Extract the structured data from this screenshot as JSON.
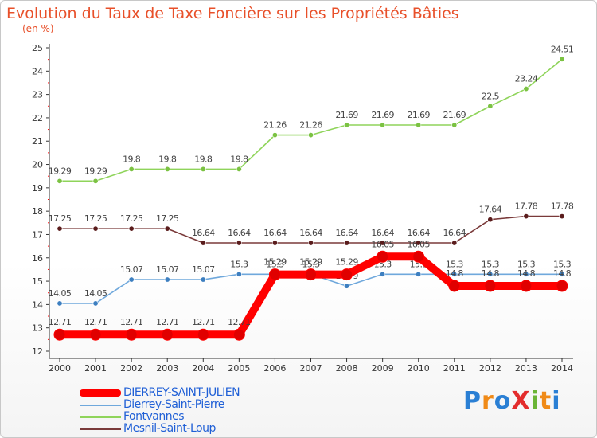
{
  "title": "Evolution du Taux de Taxe Foncière sur les Propriétés Bâties",
  "unit": "(en %)",
  "brand": "ProXiti",
  "brand_colors": [
    "#2a7fd4",
    "#f08a17",
    "#2a7fd4",
    "#e32c2c",
    "#6ab536",
    "#f08a17",
    "#2a7fd4"
  ],
  "chart_data": {
    "type": "line",
    "x": [
      2000,
      2001,
      2002,
      2003,
      2004,
      2005,
      2006,
      2007,
      2008,
      2009,
      2010,
      2011,
      2012,
      2013,
      2014
    ],
    "ylim": [
      12,
      25
    ],
    "yticks": [
      12,
      13,
      14,
      15,
      16,
      17,
      18,
      19,
      20,
      21,
      22,
      23,
      24,
      25
    ],
    "grid": false,
    "legend_position": "bottom-left",
    "series": [
      {
        "name": "Fontvannes",
        "color": "#8fd45a",
        "point_color": "#7bc242",
        "values": [
          19.29,
          19.29,
          19.8,
          19.8,
          19.8,
          19.8,
          21.26,
          21.26,
          21.69,
          21.69,
          21.69,
          21.69,
          22.5,
          23.24,
          24.51
        ],
        "labels": [
          "19.29",
          "19.29",
          "19.8",
          "19.8",
          "19.8",
          "19.8",
          "21.26",
          "21.26",
          "21.69",
          "21.69",
          "21.69",
          "21.69",
          "22.5",
          "23.24",
          "24.51"
        ]
      },
      {
        "name": "Mesnil-Saint-Loup",
        "color": "#7a3a3a",
        "point_color": "#5a1c1c",
        "values": [
          17.25,
          17.25,
          17.25,
          17.25,
          16.64,
          16.64,
          16.64,
          16.64,
          16.64,
          16.64,
          16.64,
          16.64,
          17.64,
          17.78,
          17.78
        ],
        "labels": [
          "17.25",
          "17.25",
          "17.25",
          "17.25",
          "16.64",
          "16.64",
          "16.64",
          "16.64",
          "16.64",
          "16.64",
          "16.64",
          "16.64",
          "17.64",
          "17.78",
          "17.78"
        ]
      },
      {
        "name": "Dierrey-Saint-Pierre",
        "color": "#6fa8dc",
        "point_color": "#3d7fc0",
        "values": [
          14.05,
          14.05,
          15.07,
          15.07,
          15.07,
          15.3,
          15.3,
          15.3,
          14.79,
          15.3,
          15.3,
          15.3,
          15.3,
          15.3,
          15.3
        ],
        "labels": [
          "14.05",
          "14.05",
          "15.07",
          "15.07",
          "15.07",
          "15.3",
          "15.3",
          "15.3",
          "14.79",
          "15.3",
          "15.3",
          "15.3",
          "15.3",
          "15.3",
          "15.3"
        ]
      },
      {
        "name": "DIERREY-SAINT-JULIEN",
        "color": "#ff0000",
        "point_color": "#e00000",
        "values": [
          12.71,
          12.71,
          12.71,
          12.71,
          12.71,
          12.71,
          15.29,
          15.29,
          15.29,
          16.05,
          16.05,
          14.8,
          14.8,
          14.8,
          14.8
        ],
        "labels": [
          "12.71",
          "12.71",
          "12.71",
          "12.71",
          "12.71",
          "12.71",
          "15.29",
          "15.29",
          "15.29",
          "16.05",
          "16.05",
          "14.8",
          "14.8",
          "14.8",
          "14.8"
        ]
      }
    ]
  },
  "legend": [
    {
      "label": "DIERREY-SAINT-JULIEN",
      "color": "#ff0000"
    },
    {
      "label": "Dierrey-Saint-Pierre",
      "color": "#6fa8dc"
    },
    {
      "label": "Fontvannes",
      "color": "#8fd45a"
    },
    {
      "label": "Mesnil-Saint-Loup",
      "color": "#7a3a3a"
    }
  ]
}
